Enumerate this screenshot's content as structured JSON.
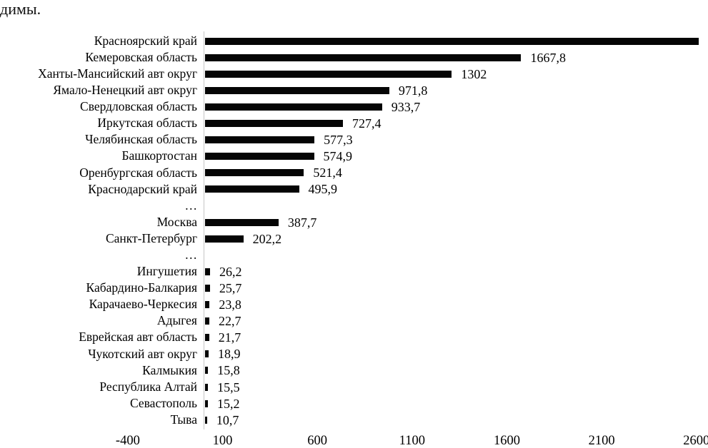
{
  "document": {
    "top_text": "димы."
  },
  "chart_data": {
    "type": "bar",
    "orientation": "horizontal",
    "title": "",
    "xlabel": "",
    "ylabel": "",
    "bar_color": "#050505",
    "grid": false,
    "legend": false,
    "x_axis": {
      "tick_values": [
        -400,
        100,
        600,
        1100,
        1600,
        2100,
        2600
      ],
      "tick_labels": [
        "-400",
        "100",
        "600",
        "1100",
        "1600",
        "2100",
        "2600"
      ],
      "bars_origin_value": 0
    },
    "rows": [
      {
        "label": "Красноярский край",
        "value": 2605,
        "value_label": ""
      },
      {
        "label": "Кемеровская область",
        "value": 1667.8,
        "value_label": "1667,8"
      },
      {
        "label": "Ханты-Мансийский авт округ",
        "value": 1302,
        "value_label": "1302"
      },
      {
        "label": "Ямало-Ненецкий авт округ",
        "value": 971.8,
        "value_label": "971,8"
      },
      {
        "label": "Свердловская область",
        "value": 933.7,
        "value_label": "933,7"
      },
      {
        "label": "Иркутская область",
        "value": 727.4,
        "value_label": "727,4"
      },
      {
        "label": "Челябинская область",
        "value": 577.3,
        "value_label": "577,3"
      },
      {
        "label": "Башкортостан",
        "value": 574.9,
        "value_label": "574,9"
      },
      {
        "label": "Оренбургская область",
        "value": 521.4,
        "value_label": "521,4"
      },
      {
        "label": "Краснодарский край",
        "value": 495.9,
        "value_label": "495,9"
      },
      {
        "label": "…",
        "ellipsis": true
      },
      {
        "label": "Москва",
        "value": 387.7,
        "value_label": "387,7"
      },
      {
        "label": "Санкт-Петербург",
        "value": 202.2,
        "value_label": "202,2"
      },
      {
        "label": "…",
        "ellipsis": true
      },
      {
        "label": "Ингушетия",
        "value": 26.2,
        "value_label": "26,2"
      },
      {
        "label": "Кабардино-Балкария",
        "value": 25.7,
        "value_label": "25,7"
      },
      {
        "label": "Карачаево-Черкесия",
        "value": 23.8,
        "value_label": "23,8"
      },
      {
        "label": "Адыгея",
        "value": 22.7,
        "value_label": "22,7"
      },
      {
        "label": "Еврейская авт область",
        "value": 21.7,
        "value_label": "21,7"
      },
      {
        "label": "Чукотский авт округ",
        "value": 18.9,
        "value_label": "18,9"
      },
      {
        "label": "Калмыкия",
        "value": 15.8,
        "value_label": "15,8"
      },
      {
        "label": "Республика Алтай",
        "value": 15.5,
        "value_label": "15,5"
      },
      {
        "label": "Севастополь",
        "value": 15.2,
        "value_label": "15,2"
      },
      {
        "label": "Тыва",
        "value": 10.7,
        "value_label": "10,7"
      }
    ]
  }
}
